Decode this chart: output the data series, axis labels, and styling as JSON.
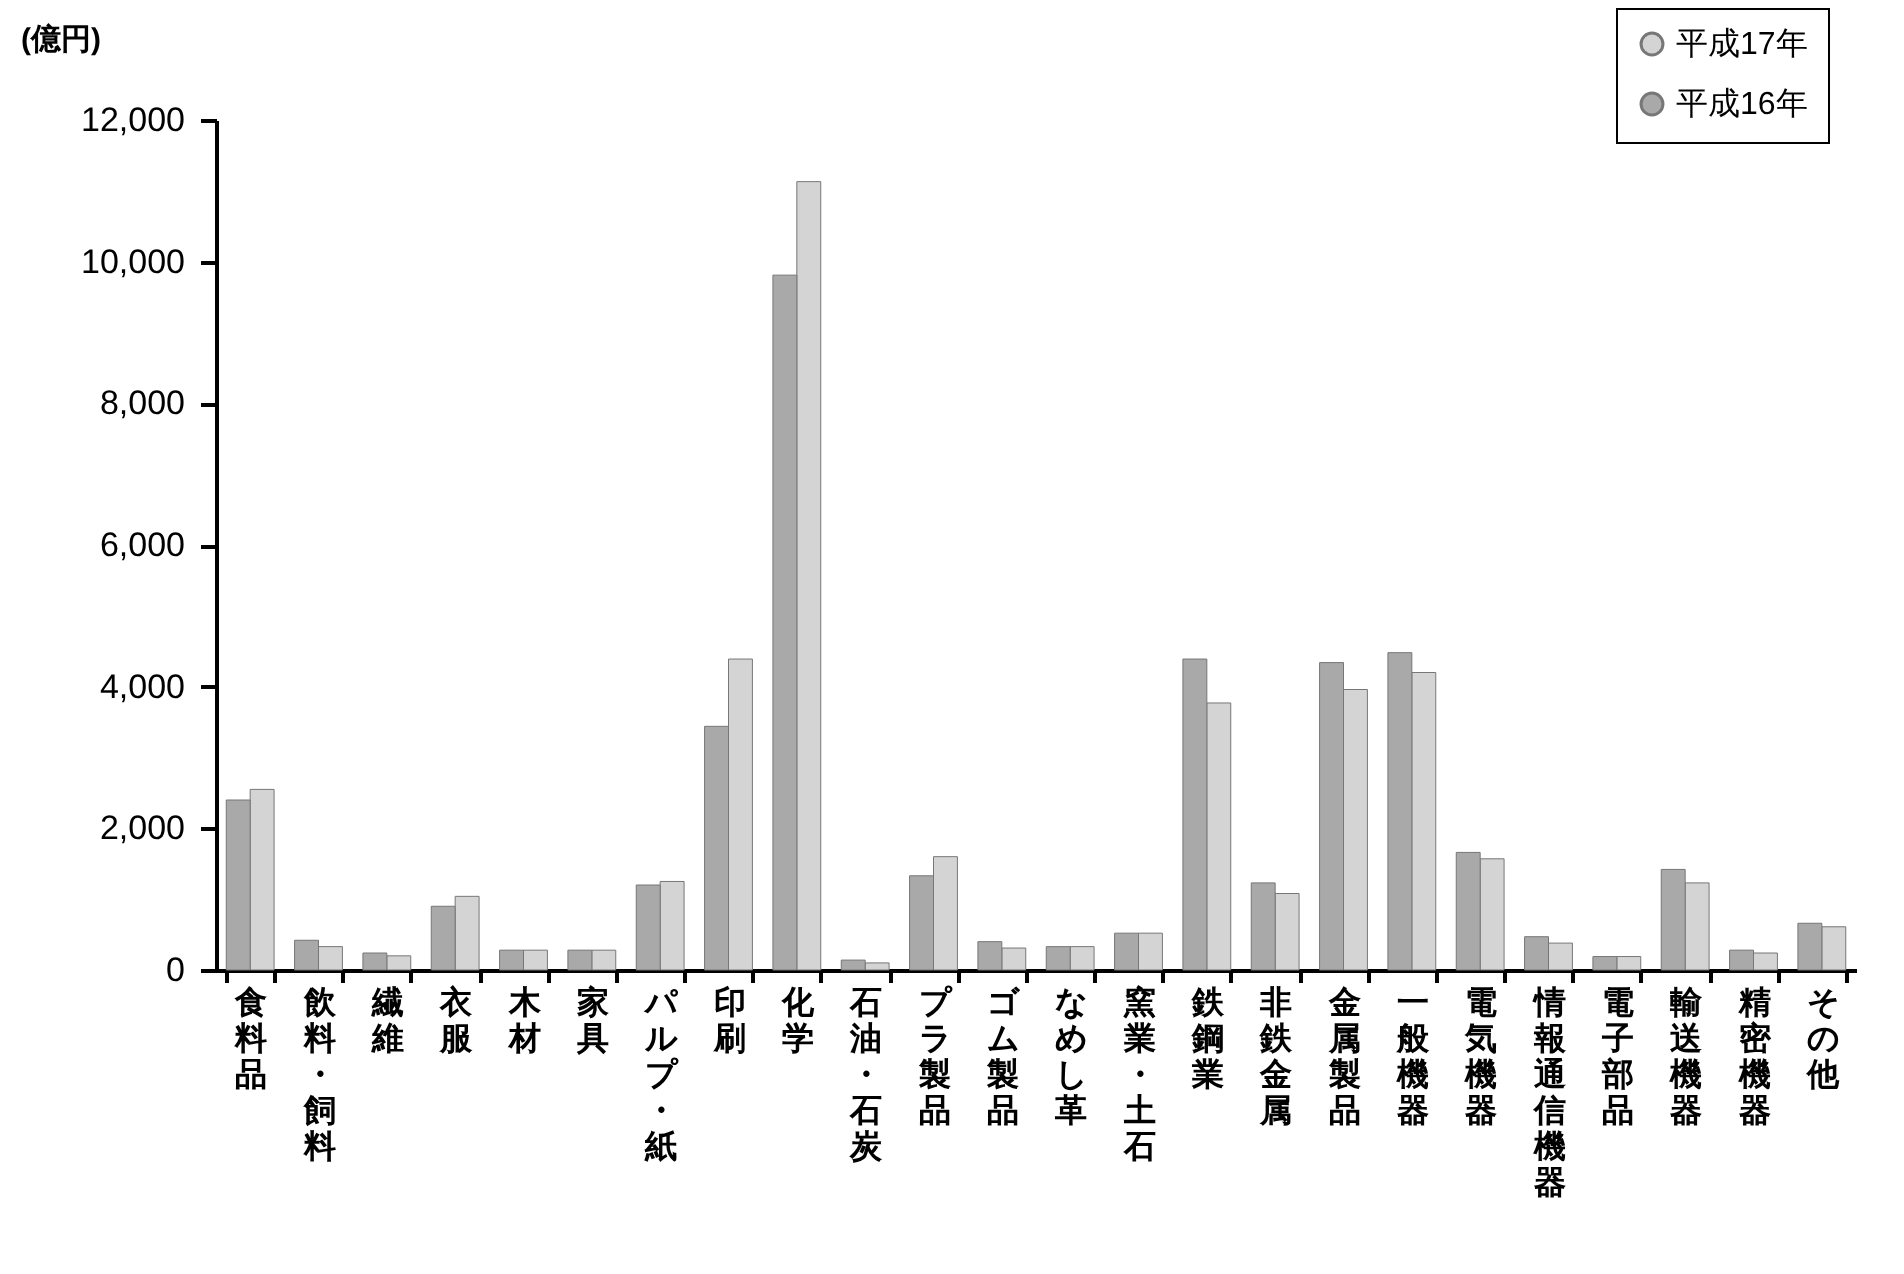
{
  "chart_data": {
    "type": "bar",
    "ylabel": "(億円)",
    "categories": [
      "食料品",
      "飲料・飼料",
      "繊維",
      "衣服",
      "木材",
      "家具",
      "パルプ・紙",
      "印刷",
      "化学",
      "石油・石炭",
      "プラ製品",
      "ゴム製品",
      "なめし革",
      "窯業・土石",
      "鉄鋼業",
      "非鉄金属",
      "金属製品",
      "一般機器",
      "電気機器",
      "情報通信機器",
      "電子部品",
      "輸送機器",
      "精密機器",
      "その他"
    ],
    "series": [
      {
        "name": "平成17年",
        "color": "#d4d4d4",
        "values": [
          2550,
          330,
          200,
          1040,
          280,
          280,
          1250,
          4390,
          11130,
          100,
          1600,
          310,
          330,
          520,
          3770,
          1080,
          3960,
          4200,
          1570,
          380,
          190,
          1230,
          240,
          610
        ]
      },
      {
        "name": "平成16年",
        "color": "#a9a9a9",
        "values": [
          2400,
          420,
          240,
          900,
          280,
          280,
          1200,
          3440,
          9810,
          140,
          1330,
          400,
          330,
          520,
          4390,
          1230,
          4340,
          4480,
          1660,
          470,
          190,
          1420,
          280,
          660
        ]
      }
    ],
    "ylim": [
      0,
      12000
    ],
    "yticks": [
      0,
      {
        "value": 2000,
        "label": "2,000"
      },
      {
        "value": 4000,
        "label": "4,000"
      },
      {
        "value": 6000,
        "label": "6,000"
      },
      {
        "value": 8000,
        "label": "8,000"
      },
      {
        "value": 10000,
        "label": "10,000"
      },
      {
        "value": 12000,
        "label": "12,000"
      }
    ],
    "grid": false,
    "legend": "top right"
  }
}
